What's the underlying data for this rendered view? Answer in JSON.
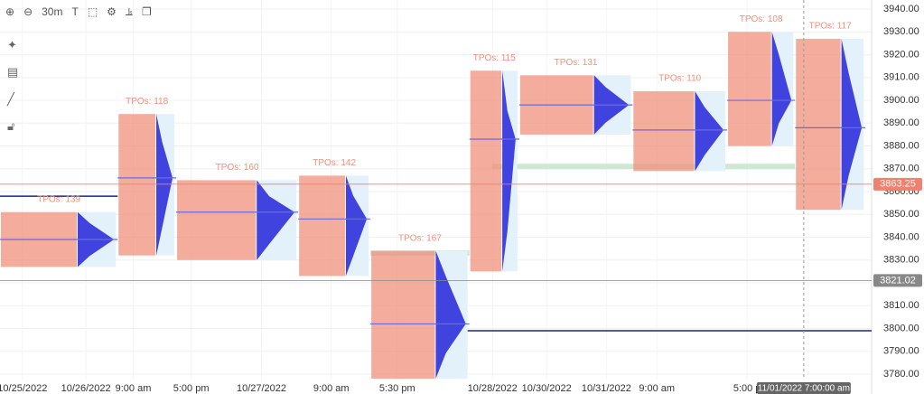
{
  "toolbar": {
    "timeframe": "30m"
  },
  "chart_data": {
    "type": "market-profile",
    "ylim": [
      3777.6,
      3944
    ],
    "yticks": [
      {
        "value": 3780,
        "label": "3780.00"
      },
      {
        "value": 3790,
        "label": "3790.00"
      },
      {
        "value": 3800,
        "label": "3800.00"
      },
      {
        "value": 3810,
        "label": "3810.00"
      },
      {
        "value": 3820,
        "label": "3820.00"
      },
      {
        "value": 3830,
        "label": "3830.00"
      },
      {
        "value": 3840,
        "label": "3840.00"
      },
      {
        "value": 3850,
        "label": "3850.00"
      },
      {
        "value": 3860,
        "label": "3860.00"
      },
      {
        "value": 3870,
        "label": "3870.00"
      },
      {
        "value": 3880,
        "label": "3880.00"
      },
      {
        "value": 3890,
        "label": "3890.00"
      },
      {
        "value": 3900,
        "label": "3900.00"
      },
      {
        "value": 3910,
        "label": "3910.00"
      },
      {
        "value": 3920,
        "label": "3920.00"
      },
      {
        "value": 3930,
        "label": "3930.00"
      },
      {
        "value": 3940,
        "label": "3940.00"
      }
    ],
    "xlim": [
      0,
      14
    ],
    "xticks": [
      {
        "value": 0.36,
        "label": "10/25/2022"
      },
      {
        "value": 1.38,
        "label": "10/26/2022"
      },
      {
        "value": 2.14,
        "label": "9:00 am"
      },
      {
        "value": 3.07,
        "label": "5:00 pm"
      },
      {
        "value": 4.2,
        "label": "10/27/2022"
      },
      {
        "value": 5.32,
        "label": "9:00 am"
      },
      {
        "value": 6.38,
        "label": "5:30 pm"
      },
      {
        "value": 7.91,
        "label": "10/28/2022"
      },
      {
        "value": 8.78,
        "label": "10/30/2022"
      },
      {
        "value": 9.74,
        "label": "10/31/2022"
      },
      {
        "value": 10.55,
        "label": "9:00 am"
      },
      {
        "value": 12.0,
        "label": "5:00 p"
      }
    ],
    "profile_color": "#f0907c",
    "volume_color": "#2424d8",
    "poc_color": "#6a6ae0",
    "profiles": [
      {
        "label": "TPOs: 139",
        "x": [
          0,
          1.89
        ],
        "low": 3827,
        "high": 3851,
        "poc": 3839
      },
      {
        "label": "TPOs: 118",
        "x": [
          1.89,
          2.83
        ],
        "low": 3832,
        "high": 3894,
        "poc": 3866
      },
      {
        "label": "TPOs: 160",
        "x": [
          2.83,
          4.79
        ],
        "low": 3830,
        "high": 3865,
        "poc": 3851
      },
      {
        "label": "TPOs: 142",
        "x": [
          4.79,
          5.95
        ],
        "low": 3823,
        "high": 3867,
        "poc": 3848
      },
      {
        "label": "TPOs: 167",
        "x": [
          5.95,
          7.54
        ],
        "low": 3778,
        "high": 3834,
        "poc": 3802
      },
      {
        "label": "TPOs: 115",
        "x": [
          7.54,
          8.34
        ],
        "low": 3825,
        "high": 3913,
        "poc": 3883
      },
      {
        "label": "TPOs: 131",
        "x": [
          8.34,
          10.16
        ],
        "low": 3885,
        "high": 3911,
        "poc": 3898
      },
      {
        "label": "TPOs: 110",
        "x": [
          10.16,
          11.68
        ],
        "low": 3869,
        "high": 3904,
        "poc": 3887
      },
      {
        "label": "TPOs: 108",
        "x": [
          11.68,
          12.77
        ],
        "low": 3880,
        "high": 3930,
        "poc": 3900
      },
      {
        "label": "TPOs: 117",
        "x": [
          12.77,
          13.9
        ],
        "low": 3852,
        "high": 3927,
        "poc": 3888
      }
    ],
    "levels": [
      {
        "value": 3858,
        "x": [
          0,
          1.89
        ],
        "color": "#1a237e"
      },
      {
        "value": 3799,
        "x": [
          7.2,
          14
        ],
        "color": "#1a237e"
      },
      {
        "value": 3833,
        "x": [
          5.95,
          7.54
        ],
        "color": "#cfe8d4"
      },
      {
        "value": 3871,
        "x": [
          7.9,
          12.77
        ],
        "color": "#cfe8d4"
      }
    ],
    "price_markers": [
      {
        "value": 3863.25,
        "color": "#f08070"
      },
      {
        "value": 3821.02,
        "color": "#888888"
      }
    ],
    "crosshair": {
      "x": 12.91,
      "label": "11/01/2022 7:00:00 am"
    }
  }
}
